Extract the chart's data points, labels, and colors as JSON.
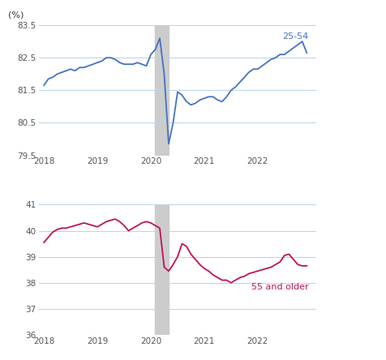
{
  "title_unit": "(%)",
  "shade_start": 2020.08,
  "shade_end": 2020.33,
  "top": {
    "label": "25-54",
    "color": "#4472C4",
    "ylim": [
      79.5,
      83.5
    ],
    "yticks": [
      79.5,
      80.5,
      81.5,
      82.5,
      83.5
    ],
    "data_x": [
      2018.0,
      2018.083,
      2018.167,
      2018.25,
      2018.333,
      2018.417,
      2018.5,
      2018.583,
      2018.667,
      2018.75,
      2018.833,
      2018.917,
      2019.0,
      2019.083,
      2019.167,
      2019.25,
      2019.333,
      2019.417,
      2019.5,
      2019.583,
      2019.667,
      2019.75,
      2019.833,
      2019.917,
      2020.0,
      2020.083,
      2020.167,
      2020.25,
      2020.333,
      2020.417,
      2020.5,
      2020.583,
      2020.667,
      2020.75,
      2020.833,
      2020.917,
      2021.0,
      2021.083,
      2021.167,
      2021.25,
      2021.333,
      2021.417,
      2021.5,
      2021.583,
      2021.667,
      2021.75,
      2021.833,
      2021.917,
      2022.0,
      2022.083,
      2022.167,
      2022.25,
      2022.333,
      2022.417,
      2022.5,
      2022.583,
      2022.667,
      2022.75,
      2022.833,
      2022.917
    ],
    "data_y": [
      81.65,
      81.85,
      81.9,
      82.0,
      82.05,
      82.1,
      82.15,
      82.1,
      82.2,
      82.2,
      82.25,
      82.3,
      82.35,
      82.4,
      82.5,
      82.5,
      82.45,
      82.35,
      82.3,
      82.3,
      82.3,
      82.35,
      82.3,
      82.25,
      82.6,
      82.75,
      83.1,
      82.0,
      79.85,
      80.5,
      81.45,
      81.35,
      81.15,
      81.05,
      81.1,
      81.2,
      81.25,
      81.3,
      81.3,
      81.2,
      81.15,
      81.3,
      81.5,
      81.6,
      81.75,
      81.9,
      82.05,
      82.15,
      82.15,
      82.25,
      82.35,
      82.45,
      82.5,
      82.6,
      82.6,
      82.7,
      82.8,
      82.9,
      83.0,
      82.65
    ]
  },
  "bottom": {
    "label": "55 and older",
    "color": "#C0105A",
    "ylim": [
      36,
      41
    ],
    "yticks": [
      36,
      37,
      38,
      39,
      40,
      41
    ],
    "data_x": [
      2018.0,
      2018.083,
      2018.167,
      2018.25,
      2018.333,
      2018.417,
      2018.5,
      2018.583,
      2018.667,
      2018.75,
      2018.833,
      2018.917,
      2019.0,
      2019.083,
      2019.167,
      2019.25,
      2019.333,
      2019.417,
      2019.5,
      2019.583,
      2019.667,
      2019.75,
      2019.833,
      2019.917,
      2020.0,
      2020.083,
      2020.167,
      2020.25,
      2020.333,
      2020.417,
      2020.5,
      2020.583,
      2020.667,
      2020.75,
      2020.833,
      2020.917,
      2021.0,
      2021.083,
      2021.167,
      2021.25,
      2021.333,
      2021.417,
      2021.5,
      2021.583,
      2021.667,
      2021.75,
      2021.833,
      2021.917,
      2022.0,
      2022.083,
      2022.167,
      2022.25,
      2022.333,
      2022.417,
      2022.5,
      2022.583,
      2022.667,
      2022.75,
      2022.833,
      2022.917
    ],
    "data_y": [
      39.55,
      39.75,
      39.95,
      40.05,
      40.1,
      40.1,
      40.15,
      40.2,
      40.25,
      40.3,
      40.25,
      40.2,
      40.15,
      40.25,
      40.35,
      40.4,
      40.45,
      40.35,
      40.2,
      40.0,
      40.1,
      40.2,
      40.3,
      40.35,
      40.3,
      40.2,
      40.1,
      38.6,
      38.45,
      38.7,
      39.0,
      39.5,
      39.4,
      39.1,
      38.9,
      38.7,
      38.55,
      38.45,
      38.3,
      38.2,
      38.1,
      38.1,
      38.0,
      38.1,
      38.2,
      38.25,
      38.35,
      38.4,
      38.45,
      38.5,
      38.55,
      38.6,
      38.7,
      38.8,
      39.05,
      39.1,
      38.9,
      38.7,
      38.65,
      38.65
    ]
  },
  "xticks": [
    2018,
    2019,
    2020,
    2021,
    2022
  ],
  "xlim": [
    2017.9,
    2023.1
  ],
  "shade_color": "#CCCCCC",
  "background_color": "#FFFFFF",
  "grid_color": "#B8D4E8",
  "label_color_top": "#4472C4",
  "label_color_bottom": "#C0105A"
}
